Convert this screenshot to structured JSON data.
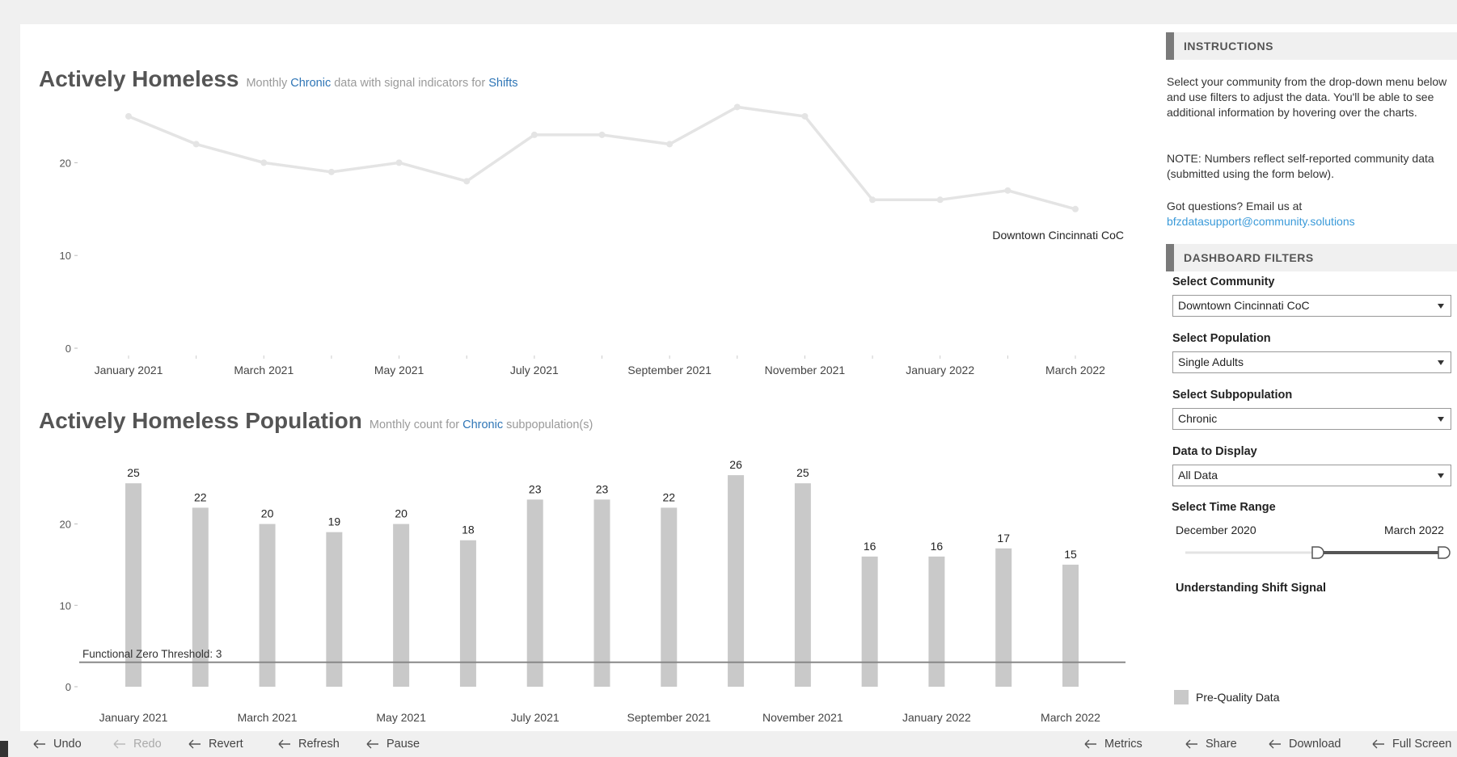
{
  "chart_data": [
    {
      "type": "line",
      "title": "Actively Homeless",
      "subtitle": [
        "Monthly",
        "Chronic",
        "data with signal indicators for",
        "Shifts"
      ],
      "categories": [
        "January 2021",
        null,
        "March 2021",
        null,
        "May 2021",
        null,
        "July 2021",
        null,
        "September 2021",
        null,
        "November 2021",
        null,
        "January 2022",
        null,
        "March 2022"
      ],
      "series": [
        {
          "name": "Downtown Cincinnati CoC",
          "color": "#e4e4e4",
          "values": [
            25,
            22,
            20,
            19,
            20,
            18,
            23,
            23,
            22,
            26,
            25,
            16,
            16,
            17,
            15
          ]
        }
      ],
      "ylim": [
        0,
        27
      ],
      "yticks": [
        0,
        10,
        20
      ]
    },
    {
      "type": "bar",
      "title": "Actively Homeless Population",
      "subtitle": [
        "Monthly count for",
        "Chronic",
        "subpopulation(s)"
      ],
      "categories": [
        "January 2021",
        null,
        "March 2021",
        null,
        "May 2021",
        null,
        "July 2021",
        null,
        "September 2021",
        null,
        "November 2021",
        null,
        "January 2022",
        null,
        "March 2022"
      ],
      "values": [
        25,
        22,
        20,
        19,
        20,
        18,
        23,
        23,
        22,
        26,
        25,
        16,
        16,
        17,
        15
      ],
      "color": "#c9c9c9",
      "ylim": [
        0,
        28
      ],
      "yticks": [
        0,
        10,
        20
      ],
      "reference_line": {
        "value": 3,
        "label": "Functional Zero Threshold: 3"
      }
    }
  ],
  "sidebar": {
    "instructions": {
      "header": "INSTRUCTIONS",
      "paragraphs": [
        "Select your community from the drop-down menu below and use filters to adjust the data.  You'll be able to see additional information by hovering over the charts.",
        "NOTE: Numbers reflect self-reported community data (submitted using the form below).",
        "Got questions?  Email us at"
      ],
      "email": "bfzdatasupport@community.solutions"
    },
    "filters": {
      "header": "DASHBOARD FILTERS",
      "items": [
        {
          "label": "Select Community",
          "value": "Downtown Cincinnati CoC"
        },
        {
          "label": "Select Population",
          "value": "Single Adults"
        },
        {
          "label": "Select Subpopulation",
          "value": "Chronic"
        },
        {
          "label": "Data to Display",
          "value": "All Data"
        }
      ],
      "time_range": {
        "label": "Select Time Range",
        "start": "December 2020",
        "end": "March 2022"
      }
    },
    "shift_signal": "Understanding Shift Signal",
    "legend": "Pre-Quality Data"
  },
  "toolbar": {
    "left": [
      "Undo",
      "Redo",
      "Revert",
      "Refresh",
      "Pause"
    ],
    "right": [
      "Metrics",
      "Share",
      "Download",
      "Full Screen"
    ]
  }
}
